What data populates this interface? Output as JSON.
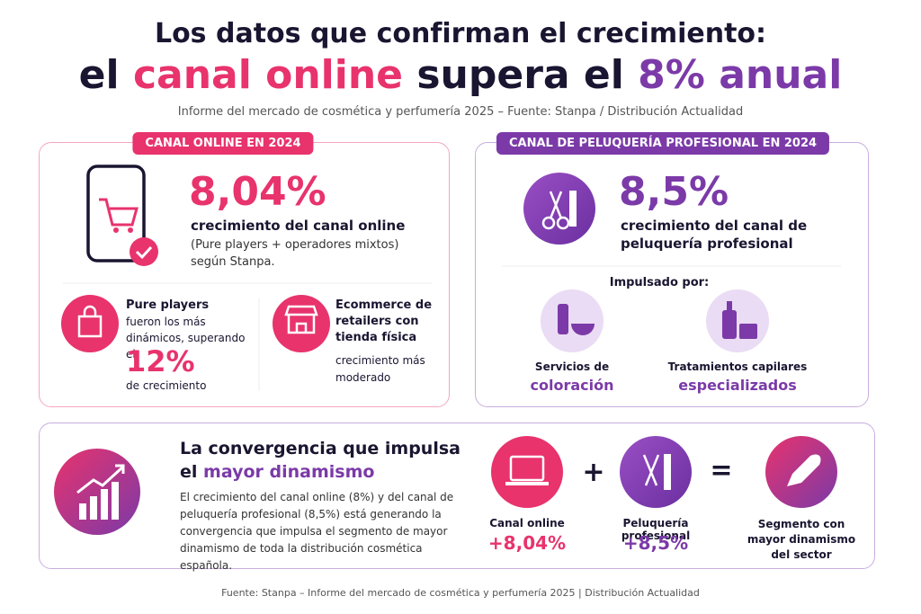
{
  "header": {
    "title_line1": "Los datos que confirman el crecimiento:",
    "title_line2": [
      "el",
      "canal online",
      "supera el",
      "8%",
      "anual"
    ],
    "subtitle": "Informe del mercado de cosmética y perfumería 2025 – Fuente: Stanpa / Distribución Actualidad"
  },
  "online_card": {
    "badge": "CANAL ONLINE EN 2024",
    "stat": "8,04%",
    "stat_label": "crecimiento del canal online",
    "stat_note": "(Pure players + operadores mixtos) según Stanpa.",
    "pure_players": {
      "title": "Pure players",
      "text": "fueron los más dinámicos, superando el",
      "stat": "12%",
      "stat_label": "de crecimiento"
    },
    "ecommerce": {
      "title": "Ecommerce de retailers con tienda física",
      "text": "crecimiento más moderado"
    }
  },
  "salon_card": {
    "badge": "CANAL DE PELUQUERÍA PROFESIONAL EN 2024",
    "stat": "8,5%",
    "stat_label": "crecimiento del canal de peluquería profesional",
    "driven_by": "Impulsado por:",
    "drivers": [
      {
        "label": "Servicios de",
        "highlight": "coloración"
      },
      {
        "label": "Tratamientos capilares",
        "highlight": "especializados"
      }
    ]
  },
  "convergence": {
    "title_line1": "La convergencia que impulsa",
    "title_prefix": "el",
    "title_highlight": "mayor dinamismo",
    "body": "El crecimiento del canal online (8%) y del canal de peluquería profesional (8,5%) está generando la convergencia que impulsa el segmento de mayor dinamismo de toda la distribución cosmética española.",
    "items": [
      {
        "label": "Canal online",
        "value": "+8,04%"
      },
      {
        "label": "Peluquería profesional",
        "value": "+8,5%"
      },
      {
        "label": "Segmento con mayor dinamismo del sector"
      }
    ],
    "operators": [
      "+",
      "="
    ]
  },
  "footer": "Fuente: Stanpa – Informe del mercado de cosmética y perfumería 2025 | Distribución Actualidad"
}
